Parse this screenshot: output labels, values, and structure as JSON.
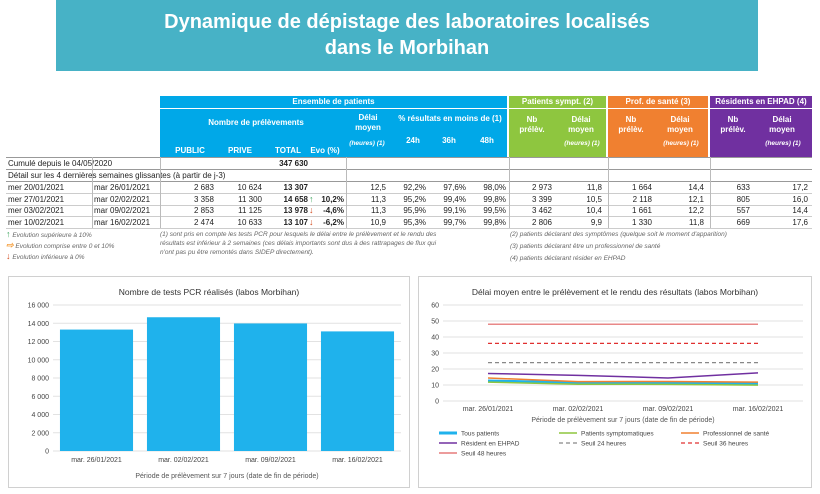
{
  "banner": {
    "line1": "Dynamique de dépistage des laboratoires localisés",
    "line2": "dans le Morbihan"
  },
  "table": {
    "group_headers": {
      "all": "Ensemble de patients",
      "sympt": "Patients sympt.",
      "sympt_sup": "(2)",
      "pro": "Prof. de santé",
      "pro_sup": "(3)",
      "ehpad": "Résidents en EHPAD",
      "ehpad_sup": "(4)"
    },
    "sub_headers": {
      "nb_prelevements": "Nombre de prélèvements",
      "delai_moyen": "Délai moyen",
      "heures_sup": "(heures) (1)",
      "pct_resultats": "% résultats en moins de",
      "pct_sup": "(1)",
      "public": "PUBLIC",
      "prive": "PRIVE",
      "total": "TOTAL",
      "evo": "Evo (%)",
      "h24": "24h",
      "h36": "36h",
      "h48": "48h",
      "nb_prelev": "Nb prélèv.",
      "delai_moyen_short": "Délai moyen",
      "heures": "(heures) (1)"
    },
    "cumul_label": "Cumulé depuis le 04/05/2020",
    "cumul_total": "347 630",
    "detail_label": "Détail sur les 4 dernières semaines glissantes (à partir de j-3)",
    "rows": [
      {
        "start": "mer 20/01/2021",
        "end": "mar 26/01/2021",
        "public": "2 683",
        "prive": "10 624",
        "total": "13 307",
        "evo": "",
        "arrow": "",
        "delai": "12,5",
        "h24": "92,2%",
        "h36": "97,6%",
        "h48": "98,0%",
        "s_nb": "2 973",
        "s_delai": "11,8",
        "p_nb": "1 664",
        "p_delai": "14,4",
        "e_nb": "633",
        "e_delai": "17,2"
      },
      {
        "start": "mer 27/01/2021",
        "end": "mar 02/02/2021",
        "public": "3 358",
        "prive": "11 300",
        "total": "14 658",
        "evo": "10,2%",
        "arrow": "up",
        "delai": "11,3",
        "h24": "95,2%",
        "h36": "99,4%",
        "h48": "99,8%",
        "s_nb": "3 399",
        "s_delai": "10,5",
        "p_nb": "2 118",
        "p_delai": "12,1",
        "e_nb": "805",
        "e_delai": "16,0"
      },
      {
        "start": "mer 03/02/2021",
        "end": "mar 09/02/2021",
        "public": "2 853",
        "prive": "11 125",
        "total": "13 978",
        "evo": "-4,6%",
        "arrow": "down",
        "delai": "11,3",
        "h24": "95,9%",
        "h36": "99,1%",
        "h48": "99,5%",
        "s_nb": "3 462",
        "s_delai": "10,4",
        "p_nb": "1 661",
        "p_delai": "12,2",
        "e_nb": "557",
        "e_delai": "14,4"
      },
      {
        "start": "mer 10/02/2021",
        "end": "mar 16/02/2021",
        "public": "2 474",
        "prive": "10 633",
        "total": "13 107",
        "evo": "-6,2%",
        "arrow": "down",
        "delai": "10,9",
        "h24": "95,3%",
        "h36": "99,7%",
        "h48": "99,8%",
        "s_nb": "2 806",
        "s_delai": "9,9",
        "p_nb": "1 330",
        "p_delai": "11,8",
        "e_nb": "669",
        "e_delai": "17,6"
      }
    ],
    "colors": {
      "all": "#00a8e8",
      "sympt": "#8ec63f",
      "pro": "#f08030",
      "ehpad": "#7030a0",
      "up": "#3aa35a",
      "mid": "#f5a040",
      "down": "#d24a1c"
    }
  },
  "notes": {
    "legend_up": "Evolution supérieure à 10%",
    "legend_mid": "Evolution comprise entre 0 et 10%",
    "legend_down": "Evolution inférieure à 0%",
    "note1_sup": "(1)",
    "note1_l1": "sont pris en compte les tests PCR pour lesquels le délai entre le prélèvement et le rendu des",
    "note1_l2": "résultats est inférieur à 2 semaines (ces délais importants sont dus à des rattrapages de flux qui",
    "note1_l3": "n'ont pas pu être remontés dans SIDEP directement).",
    "note2_sup": "(2)",
    "note2": "patients déclarant des symptômes (quelque soit le moment d'apparition)",
    "note3_sup": "(3)",
    "note3": "patients déclarant être un professionnel de santé",
    "note4_sup": "(4)",
    "note4": "patients déclarant résider en EHPAD"
  },
  "chart_data": [
    {
      "type": "bar",
      "title": "Nombre de tests PCR réalisés (labos Morbihan)",
      "categories": [
        "mar. 26/01/2021",
        "mar. 02/02/2021",
        "mar. 09/02/2021",
        "mar. 16/02/2021"
      ],
      "values": [
        13307,
        14658,
        13978,
        13107
      ],
      "xlabel": "Période de prélèvement sur 7 jours (date de fin de période)",
      "ylabel": "",
      "ylim": [
        0,
        16000
      ],
      "yticks": [
        "0",
        "2 000",
        "4 000",
        "6 000",
        "8 000",
        "10 000",
        "12 000",
        "14 000",
        "16 000"
      ],
      "color": "#1fb2ec",
      "grid": true
    },
    {
      "type": "line",
      "title": "Délai moyen entre le prélèvement et le rendu des résultats (labos Morbihan)",
      "categories": [
        "mar. 26/01/2021",
        "mar. 02/02/2021",
        "mar. 09/02/2021",
        "mar. 16/02/2021"
      ],
      "xlabel": "Période de prélèvement sur 7 jours (date de fin de période)",
      "ylabel": "",
      "ylim": [
        0,
        60
      ],
      "yticks": [
        "0",
        "10",
        "20",
        "30",
        "40",
        "50",
        "60"
      ],
      "grid": true,
      "legend_position": "bottom",
      "series": [
        {
          "name": "Tous patients",
          "values": [
            12.5,
            11.3,
            11.3,
            10.9
          ],
          "color": "#1fb2ec",
          "dash": "",
          "width": 3
        },
        {
          "name": "Patients symptomatiques",
          "values": [
            11.8,
            10.5,
            10.4,
            9.9
          ],
          "color": "#8ec63f",
          "dash": "",
          "width": 1.5
        },
        {
          "name": "Professionnel de santé",
          "values": [
            14.4,
            12.1,
            12.2,
            11.8
          ],
          "color": "#f08030",
          "dash": "",
          "width": 1.5
        },
        {
          "name": "Résident en EHPAD",
          "values": [
            17.2,
            16.0,
            14.4,
            17.6
          ],
          "color": "#7030a0",
          "dash": "",
          "width": 1.5
        },
        {
          "name": "Seuil 24 heures",
          "values": [
            24,
            24,
            24,
            24
          ],
          "color": "#888888",
          "dash": "4,3",
          "width": 1.2
        },
        {
          "name": "Seuil 36 heures",
          "values": [
            36,
            36,
            36,
            36
          ],
          "color": "#e03030",
          "dash": "4,3",
          "width": 1.2
        },
        {
          "name": "Seuil 48 heures",
          "values": [
            48,
            48,
            48,
            48
          ],
          "color": "#e06060",
          "dash": "",
          "width": 1.2
        }
      ]
    }
  ]
}
